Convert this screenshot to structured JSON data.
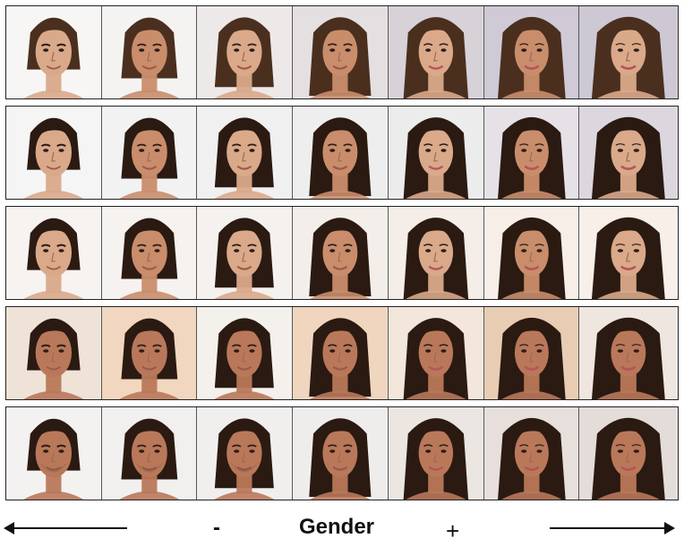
{
  "caption": {
    "label": "Gender",
    "minus": "-",
    "plus": "+"
  },
  "colors": {
    "skin_light": "#d9a98a",
    "skin_mid": "#c98d6c",
    "skin_warm": "#b9785a",
    "hair_dark": "#2a1a12",
    "hair_brown": "#4a2f1f",
    "bg_light": "#f4f1ef",
    "bg_warm": "#f3dfcc",
    "bg_lilac": "#d9d4e3"
  },
  "grid": {
    "rows": [
      {
        "cells": 7,
        "bg": [
          "#f7f6f5",
          "#f5f3f2",
          "#ece9e8",
          "#e4e0e1",
          "#d7d2d8",
          "#cfcad6",
          "#cdc8d4"
        ]
      },
      {
        "cells": 7,
        "bg": [
          "#f5f5f5",
          "#f2f2f2",
          "#f0f0f0",
          "#eeeeee",
          "#ececec",
          "#e5e1e6",
          "#dcd6df"
        ]
      },
      {
        "cells": 7,
        "bg": [
          "#f6f3f1",
          "#f6f2ef",
          "#f5f1ee",
          "#f3eee9",
          "#f5eee8",
          "#f7eee8",
          "#f8efe9"
        ]
      },
      {
        "cells": 7,
        "bg": [
          "#efe2d7",
          "#f1d7bf",
          "#f4f0ec",
          "#f0d6bf",
          "#f3e7dc",
          "#e8cdb4",
          "#efe7df"
        ]
      },
      {
        "cells": 7,
        "bg": [
          "#f4f2f1",
          "#f2f0ef",
          "#f1efee",
          "#efedec",
          "#ece6e3",
          "#e6dfdc",
          "#e4dcd9"
        ]
      }
    ]
  }
}
